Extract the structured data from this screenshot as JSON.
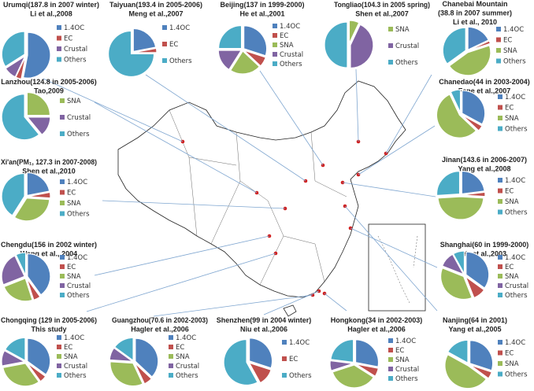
{
  "colors": {
    "1.4OC": "#4f81bd",
    "EC": "#c0504d",
    "SNA": "#9bbb59",
    "Crustal": "#8064a2",
    "Others": "#4bacc6",
    "site_marker": "#d02020",
    "connector": "#7fa6d0"
  },
  "chart_data": [
    {
      "type": "pie",
      "site": "Urumqi",
      "title": [
        "Urumqi(187.8 in 2007 winter)",
        "Li et al.,2008"
      ],
      "labels": [
        "1.4OC",
        "EC",
        "Crustal",
        "Others"
      ],
      "values": [
        53,
        4,
        9,
        34
      ]
    },
    {
      "type": "pie",
      "site": "Taiyuan",
      "title": [
        "Taiyuan(193.4  in  2005-2006)",
        "Meng et al.,2007"
      ],
      "labels": [
        "1.4OC",
        "EC",
        "Others"
      ],
      "values": [
        22,
        3,
        75
      ]
    },
    {
      "type": "pie",
      "site": "Beijing",
      "title": [
        "Beijing(137 in 1999-2000)",
        "He et al.,2001"
      ],
      "labels": [
        "1.4OC",
        "EC",
        "SNA",
        "Crustal",
        "Others"
      ],
      "values": [
        30,
        7,
        22,
        16,
        25
      ]
    },
    {
      "type": "pie",
      "site": "Tongliao",
      "title": [
        "Tongliao(104.3  in  2005 spring)",
        "Shen et al.,2007"
      ],
      "labels": [
        "SNA",
        "Crustal",
        "Others"
      ],
      "values": [
        7,
        43,
        50
      ]
    },
    {
      "type": "pie",
      "site": "Changbai Mountain",
      "title": [
        "Chanebai  Mountain",
        "(38.8 in 2007 summer)",
        "Li et al.,  2010"
      ],
      "labels": [
        "1.4OC",
        "EC",
        "SNA",
        "Others"
      ],
      "values": [
        18,
        2,
        45,
        35
      ]
    },
    {
      "type": "pie",
      "site": "Lanzhou",
      "title": [
        "Lanzhou(124.8 in 2005-2006)",
        "Tao,2009"
      ],
      "labels": [
        "SNA",
        "Crustal",
        "Others"
      ],
      "values": [
        25,
        14,
        61
      ]
    },
    {
      "type": "pie",
      "site": "Xi'an",
      "title": [
        "Xi'an(PM₁,  127.3 in  2007-2008)",
        "Shen et al.,2010"
      ],
      "labels": [
        "1.4OC",
        "EC",
        "SNA",
        "Others"
      ],
      "values": [
        22,
        4,
        33,
        41
      ]
    },
    {
      "type": "pie",
      "site": "Chengdu",
      "title": [
        "Chengdu(156 in  2002 winter)",
        "Wang et al.,  2004"
      ],
      "labels": [
        "1.4OC",
        "EC",
        "SNA",
        "Crustal",
        "Others"
      ],
      "values": [
        40,
        5,
        24,
        24,
        7
      ]
    },
    {
      "type": "pie",
      "site": "Changdao",
      "title": [
        "Chanedao(44 in 2003-2004)",
        "Fene et al.,2007"
      ],
      "labels": [
        "1.4OC",
        "EC",
        "SNA",
        "Others"
      ],
      "values": [
        33,
        4,
        56,
        7
      ]
    },
    {
      "type": "pie",
      "site": "Jinan",
      "title": [
        "Jinan(143.6 in  2006-2007)",
        "Yang et al.,2008"
      ],
      "labels": [
        "1.4OC",
        "EC",
        "SNA",
        "Others"
      ],
      "values": [
        23,
        3,
        48,
        26
      ]
    },
    {
      "type": "pie",
      "site": "Shanghai",
      "title": [
        "Shanghai(60 in 1999-2000)",
        "Ye et al.,2003"
      ],
      "labels": [
        "1.4OC",
        "EC",
        "SNA",
        "Crustal",
        "Others"
      ],
      "values": [
        35,
        9,
        37,
        11,
        8
      ]
    },
    {
      "type": "pie",
      "site": "Chongqing",
      "title": [
        "Chongqing (129 in  2005-2006)",
        "This study"
      ],
      "labels": [
        "1.4OC",
        "EC",
        "SNA",
        "Crustal",
        "Others"
      ],
      "values": [
        35,
        5,
        32,
        11,
        17
      ]
    },
    {
      "type": "pie",
      "site": "Guangzhou",
      "title": [
        "Guangzhou(70.6  in  2002-2003)",
        "Hagler et al.,2006"
      ],
      "labels": [
        "1.4OC",
        "EC",
        "SNA",
        "Crustal",
        "Others"
      ],
      "values": [
        37,
        6,
        33,
        9,
        15
      ]
    },
    {
      "type": "pie",
      "site": "Shenzhen",
      "title": [
        "Shenzhen(99 in 2004 winter)",
        "Niu et al.,2006"
      ],
      "labels": [
        "1.4OC",
        "EC",
        "Others"
      ],
      "values": [
        30,
        12,
        58
      ]
    },
    {
      "type": "pie",
      "site": "Hongkong",
      "title": [
        "Hongkong(34  in  2002-2003)",
        "Hagler et al.,2006"
      ],
      "labels": [
        "1.4OC",
        "EC",
        "SNA",
        "Crustal",
        "Others"
      ],
      "values": [
        28,
        6,
        36,
        7,
        23
      ]
    },
    {
      "type": "pie",
      "site": "Nanjing",
      "title": [
        "Nanjing(64 in 2001)",
        "Yang et al.,2005"
      ],
      "labels": [
        "1.4OC",
        "EC",
        "SNA",
        "Others"
      ],
      "values": [
        30,
        5,
        48,
        17
      ]
    }
  ]
}
